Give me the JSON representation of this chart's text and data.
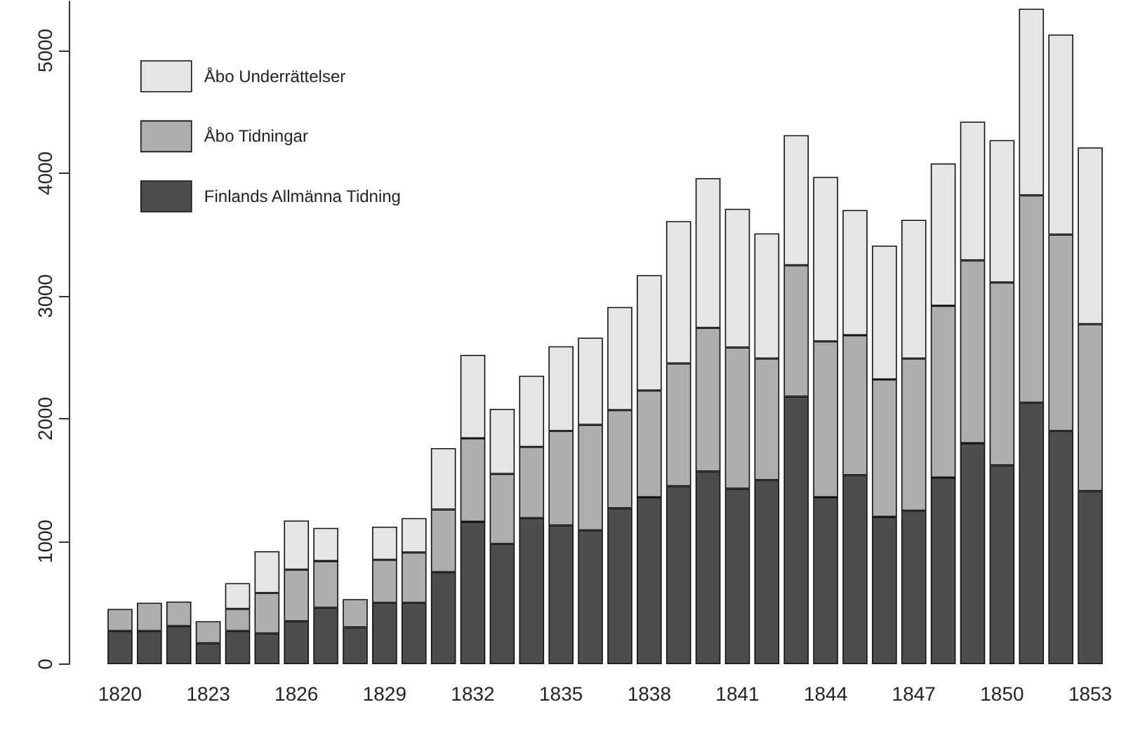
{
  "chart_data": {
    "type": "bar",
    "stacked": true,
    "categories": [
      "1820",
      null,
      null,
      "1823",
      null,
      null,
      "1826",
      null,
      null,
      "1829",
      null,
      null,
      "1832",
      null,
      null,
      "1835",
      null,
      null,
      "1838",
      null,
      null,
      "1841",
      null,
      null,
      "1844",
      null,
      null,
      "1847",
      null,
      null,
      "1850",
      null,
      null,
      "1853"
    ],
    "series": [
      {
        "name": "Finlands Allmänna Tidning",
        "color": "#4d4d4d",
        "values": [
          270,
          270,
          310,
          170,
          270,
          250,
          350,
          460,
          300,
          500,
          500,
          750,
          1160,
          980,
          1190,
          1130,
          1090,
          1270,
          1360,
          1450,
          1570,
          1430,
          1500,
          2180,
          1360,
          1540,
          1200,
          1250,
          1520,
          1800,
          1620,
          2130,
          1900,
          1410
        ]
      },
      {
        "name": "Åbo Tidningar",
        "color": "#aeaeae",
        "values": [
          180,
          230,
          200,
          180,
          180,
          330,
          420,
          380,
          230,
          350,
          410,
          510,
          680,
          570,
          580,
          770,
          860,
          800,
          870,
          1000,
          1170,
          1150,
          990,
          1070,
          1270,
          1140,
          1120,
          1240,
          1400,
          1490,
          1490,
          1690,
          1600,
          1360
        ]
      },
      {
        "name": "Åbo Underrättelser",
        "color": "#e5e5e5",
        "values": [
          null,
          null,
          null,
          null,
          210,
          340,
          400,
          270,
          null,
          270,
          280,
          500,
          680,
          530,
          580,
          690,
          710,
          840,
          940,
          1160,
          1220,
          1130,
          1020,
          1060,
          1340,
          1020,
          1090,
          1130,
          1160,
          1130,
          1160,
          1520,
          1630,
          1440
        ]
      }
    ],
    "ylim": [
      0,
      5400
    ],
    "yticks": [
      0,
      1000,
      2000,
      3000,
      4000,
      5000
    ],
    "grid": false,
    "legend": "top left"
  }
}
